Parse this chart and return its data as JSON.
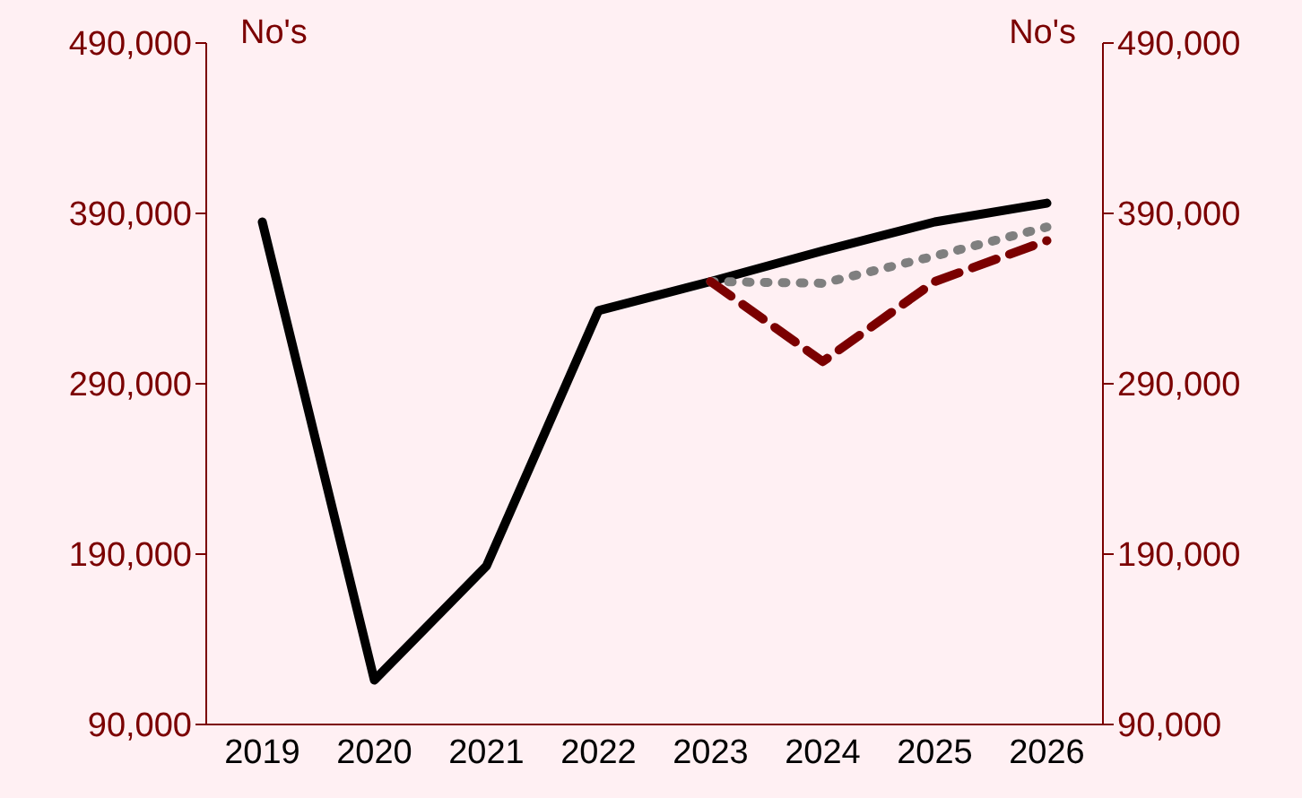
{
  "chart_data": {
    "type": "line",
    "ylabel": "No's",
    "y2label": "No's",
    "categories": [
      "2019",
      "2020",
      "2021",
      "2022",
      "2023",
      "2024",
      "2025",
      "2026"
    ],
    "series": [
      {
        "color": "#000000",
        "line_style": "solid",
        "values": [
          385000,
          116000,
          183000,
          333000,
          350000,
          368000,
          385000,
          396000
        ]
      },
      {
        "color": "#7f7f7f",
        "line_style": "dotted",
        "values": [
          null,
          null,
          null,
          null,
          350000,
          349000,
          365000,
          382000
        ]
      },
      {
        "color": "#7b0000",
        "line_style": "dashed",
        "values": [
          null,
          null,
          null,
          null,
          350000,
          303000,
          350000,
          374000
        ]
      }
    ],
    "ylim": [
      90000,
      490000
    ],
    "yticks": [
      {
        "value": 90000,
        "label": "90,000"
      },
      {
        "value": 190000,
        "label": "190,000"
      },
      {
        "value": 290000,
        "label": "290,000"
      },
      {
        "value": 390000,
        "label": "390,000"
      },
      {
        "value": 490000,
        "label": "490,000"
      }
    ],
    "y2lim": [
      90000,
      490000
    ],
    "y2ticks": [
      {
        "value": 90000,
        "label": "90,000"
      },
      {
        "value": 190000,
        "label": "190,000"
      },
      {
        "value": 290000,
        "label": "290,000"
      },
      {
        "value": 390000,
        "label": "390,000"
      },
      {
        "value": 490000,
        "label": "490,000"
      }
    ],
    "grid": false,
    "legend": false,
    "marker": "none"
  }
}
